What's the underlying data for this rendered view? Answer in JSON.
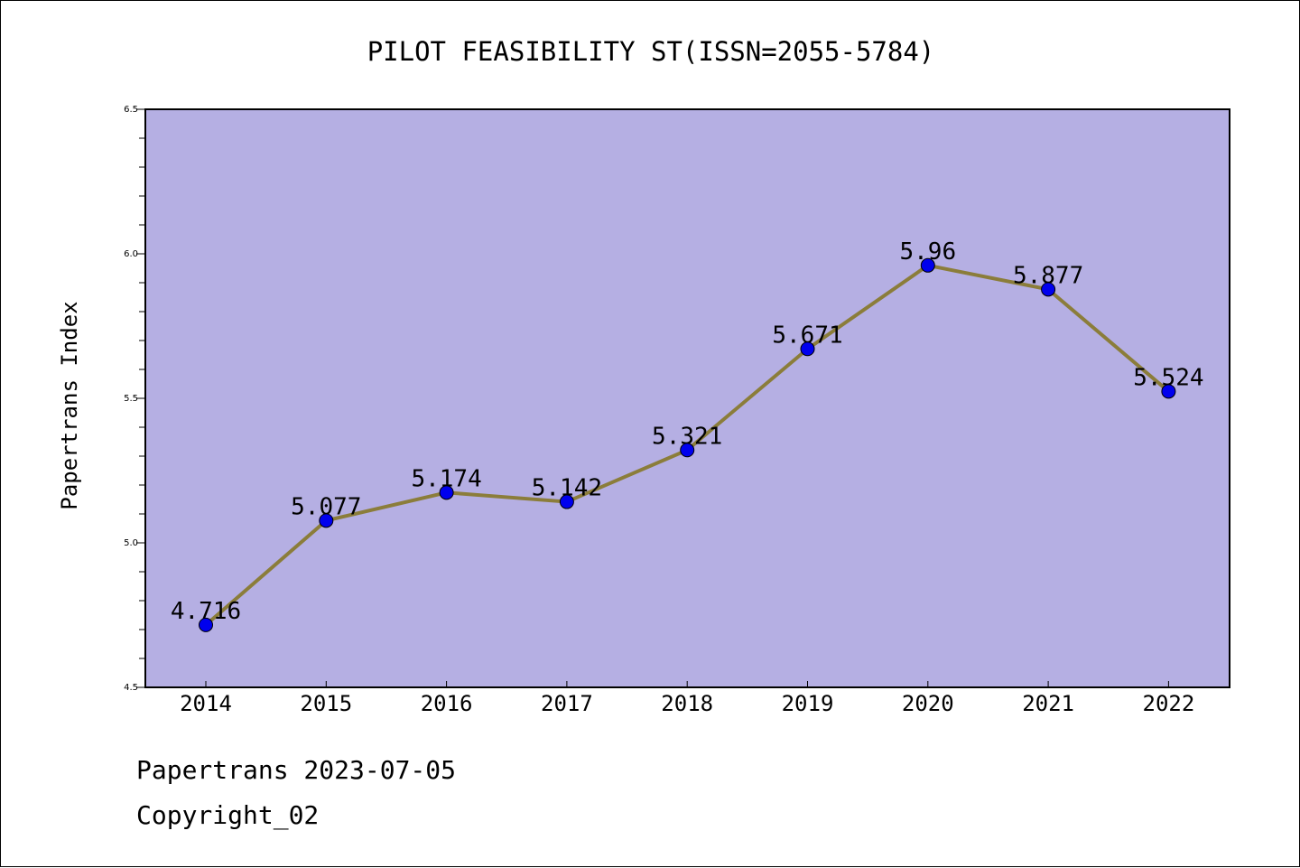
{
  "chart_data": {
    "type": "line",
    "title": "PILOT FEASIBILITY ST(ISSN=2055-5784)",
    "ylabel": "Papertrans Index",
    "xlabel": "",
    "categories": [
      "2014",
      "2015",
      "2016",
      "2017",
      "2018",
      "2019",
      "2020",
      "2021",
      "2022"
    ],
    "values": [
      4.716,
      5.077,
      5.174,
      5.142,
      5.321,
      5.671,
      5.96,
      5.877,
      5.524
    ],
    "data_labels": [
      "4.716",
      "5.077",
      "5.174",
      "5.142",
      "5.321",
      "5.671",
      "5.96",
      "5.877",
      "5.524"
    ],
    "ylim": [
      4.5,
      6.5
    ],
    "yticks": [
      "4.5",
      "5.0",
      "5.5",
      "6.0",
      "6.5"
    ],
    "grid": false,
    "colors": {
      "plot_background": "#b5afe3",
      "line": "#8b7d3a",
      "marker": "#0000ee"
    }
  },
  "footer": {
    "date_text": "Papertrans 2023-07-05",
    "copyright_text": "Copyright_02"
  }
}
